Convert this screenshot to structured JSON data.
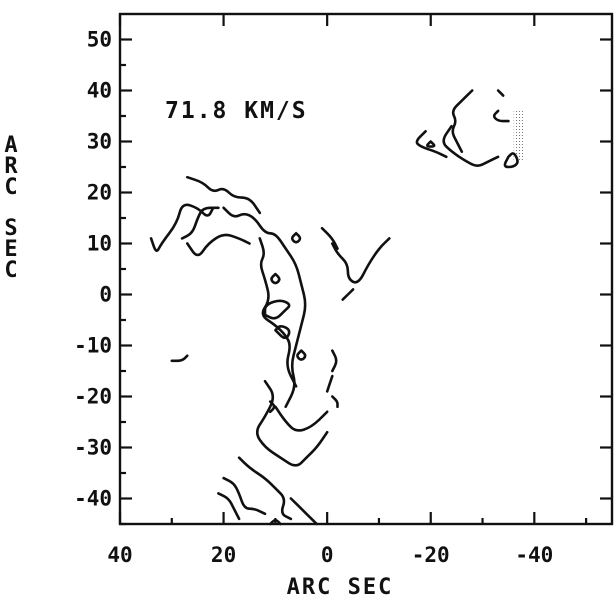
{
  "chart_data": {
    "type": "contour",
    "title": "",
    "annotation": "71.8 KM/S",
    "xlabel": "ARC SEC",
    "ylabel": "ARC SEC",
    "xlim": [
      40,
      -55
    ],
    "ylim": [
      -45,
      55
    ],
    "xticks": [
      40,
      20,
      0,
      -20,
      -40
    ],
    "xtick_labels": [
      "40",
      "20",
      "0",
      "-20",
      "-40"
    ],
    "yticks": [
      50,
      40,
      30,
      20,
      10,
      0,
      -10,
      -20,
      -30,
      -40
    ],
    "ytick_labels": [
      "50",
      "40",
      "30",
      "20",
      "10",
      "0",
      "-10",
      "-20",
      "-30",
      "-40"
    ],
    "grid": false,
    "contours": [
      {
        "points": [
          [
            27,
            23
          ],
          [
            24,
            22
          ],
          [
            22,
            20
          ],
          [
            20,
            21
          ],
          [
            18,
            19
          ],
          [
            15,
            19
          ],
          [
            13,
            16
          ]
        ]
      },
      {
        "points": [
          [
            20,
            17
          ],
          [
            18,
            15
          ],
          [
            16,
            16
          ],
          [
            14,
            15
          ],
          [
            12,
            12
          ],
          [
            10,
            12
          ],
          [
            8,
            9
          ],
          [
            6,
            6
          ],
          [
            5,
            2
          ],
          [
            4,
            -2
          ],
          [
            5,
            -6
          ],
          [
            6,
            -10
          ],
          [
            7,
            -14
          ],
          [
            6,
            -18
          ],
          [
            8,
            -22
          ]
        ]
      },
      {
        "points": [
          [
            34,
            11
          ],
          [
            33,
            8
          ],
          [
            32,
            10
          ],
          [
            29,
            14
          ],
          [
            28,
            18
          ],
          [
            25,
            17
          ],
          [
            23,
            15
          ],
          [
            22,
            17
          ]
        ]
      },
      {
        "points": [
          [
            27,
            10
          ],
          [
            25,
            7
          ],
          [
            23,
            10
          ],
          [
            20,
            12
          ],
          [
            17,
            11
          ],
          [
            15,
            10
          ]
        ]
      },
      {
        "points": [
          [
            28,
            11
          ],
          [
            26,
            12
          ],
          [
            25,
            15
          ],
          [
            24,
            17
          ],
          [
            21,
            17
          ]
        ]
      },
      {
        "points": [
          [
            13,
            11
          ],
          [
            12,
            8
          ],
          [
            13,
            6
          ],
          [
            12,
            3
          ],
          [
            11,
            -1
          ],
          [
            13,
            -4
          ],
          [
            10,
            -6
          ],
          [
            8,
            -8
          ],
          [
            7,
            -10
          ],
          [
            8,
            -14
          ],
          [
            6,
            -18
          ]
        ]
      },
      {
        "points": [
          [
            12,
            -4
          ],
          [
            10,
            -5
          ],
          [
            8,
            -3
          ],
          [
            7,
            -2
          ],
          [
            9,
            -1
          ],
          [
            12,
            -2
          ],
          [
            12,
            -4
          ]
        ]
      },
      {
        "points": [
          [
            10,
            -7
          ],
          [
            8,
            -9
          ],
          [
            7,
            -7
          ],
          [
            9,
            -6
          ],
          [
            10,
            -7
          ]
        ]
      },
      {
        "points": [
          [
            10,
            4
          ],
          [
            9,
            3
          ],
          [
            10,
            2
          ],
          [
            11,
            3
          ],
          [
            10,
            4
          ]
        ]
      },
      {
        "points": [
          [
            6,
            12
          ],
          [
            5,
            11
          ],
          [
            6,
            10
          ],
          [
            7,
            11
          ],
          [
            6,
            12
          ]
        ]
      },
      {
        "points": [
          [
            5,
            -11
          ],
          [
            4,
            -12
          ],
          [
            5,
            -13
          ],
          [
            6,
            -12
          ],
          [
            5,
            -11
          ]
        ]
      },
      {
        "points": [
          [
            27,
            -12
          ],
          [
            28,
            -13
          ],
          [
            30,
            -13
          ]
        ]
      },
      {
        "points": [
          [
            1,
            13
          ],
          [
            -1,
            11
          ],
          [
            -2,
            9
          ]
        ]
      },
      {
        "points": [
          [
            -1,
            10
          ],
          [
            -2,
            8
          ],
          [
            -4,
            6
          ],
          [
            -4,
            3
          ],
          [
            -6,
            2
          ],
          [
            -8,
            6
          ],
          [
            -10,
            9
          ],
          [
            -12,
            11
          ]
        ]
      },
      {
        "points": [
          [
            -3,
            -1
          ],
          [
            -4,
            0
          ],
          [
            -5,
            1
          ]
        ]
      },
      {
        "points": [
          [
            -1,
            -11
          ],
          [
            -2,
            -13
          ],
          [
            -1,
            -15
          ]
        ]
      },
      {
        "points": [
          [
            -1,
            -20
          ],
          [
            -2,
            -21
          ],
          [
            -2,
            -22
          ]
        ]
      },
      {
        "points": [
          [
            0,
            -19
          ],
          [
            -1,
            -16
          ]
        ]
      },
      {
        "points": [
          [
            12,
            -17
          ],
          [
            10,
            -20
          ],
          [
            12,
            -24
          ],
          [
            14,
            -27
          ],
          [
            12,
            -30
          ],
          [
            9,
            -32
          ],
          [
            6,
            -34
          ],
          [
            4,
            -32
          ],
          [
            2,
            -30
          ],
          [
            0,
            -27
          ]
        ]
      },
      {
        "points": [
          [
            10,
            -22
          ],
          [
            8,
            -25
          ],
          [
            6,
            -27
          ],
          [
            3,
            -26
          ],
          [
            0,
            -23
          ]
        ]
      },
      {
        "points": [
          [
            11,
            -21
          ],
          [
            10,
            -22
          ],
          [
            11,
            -23
          ]
        ]
      },
      {
        "points": [
          [
            17,
            -32
          ],
          [
            15,
            -34
          ],
          [
            12,
            -36
          ],
          [
            10,
            -38
          ],
          [
            8,
            -40
          ],
          [
            9,
            -43
          ],
          [
            7,
            -44
          ]
        ]
      },
      {
        "points": [
          [
            20,
            -36
          ],
          [
            18,
            -37
          ],
          [
            17,
            -39
          ],
          [
            16,
            -42
          ],
          [
            14,
            -42
          ],
          [
            12,
            -43
          ]
        ]
      },
      {
        "points": [
          [
            21,
            -39
          ],
          [
            19,
            -40
          ],
          [
            18,
            -42
          ],
          [
            17,
            -44
          ]
        ]
      },
      {
        "points": [
          [
            7,
            -40
          ],
          [
            5,
            -42
          ],
          [
            3,
            -44
          ],
          [
            2,
            -45
          ]
        ]
      },
      {
        "points": [
          [
            9,
            -45
          ],
          [
            10,
            -44
          ],
          [
            11,
            -45
          ]
        ]
      },
      {
        "points": [
          [
            -24,
            33
          ],
          [
            -22,
            30
          ],
          [
            -24,
            28
          ],
          [
            -27,
            26
          ],
          [
            -29,
            25
          ],
          [
            -31,
            26
          ],
          [
            -33,
            27
          ]
        ]
      },
      {
        "points": [
          [
            -28,
            40
          ],
          [
            -26,
            38
          ],
          [
            -24,
            36
          ],
          [
            -25,
            34
          ],
          [
            -24,
            32
          ],
          [
            -25,
            30
          ],
          [
            -26,
            28
          ]
        ]
      },
      {
        "points": [
          [
            -19,
            32
          ],
          [
            -17,
            30
          ],
          [
            -18,
            29
          ],
          [
            -21,
            28
          ],
          [
            -23,
            27
          ]
        ]
      },
      {
        "points": [
          [
            -20,
            30
          ],
          [
            -19,
            29
          ],
          [
            -21,
            29
          ],
          [
            -20,
            30
          ]
        ]
      },
      {
        "points": [
          [
            -33,
            36
          ],
          [
            -32,
            35
          ],
          [
            -33,
            34
          ],
          [
            -35,
            34
          ]
        ]
      },
      {
        "points": [
          [
            -35,
            27
          ],
          [
            -34,
            25
          ],
          [
            -36,
            25
          ],
          [
            -37,
            26
          ],
          [
            -36,
            28
          ],
          [
            -35,
            27
          ]
        ]
      },
      {
        "points": [
          [
            -33,
            40
          ],
          [
            -34,
            39
          ]
        ]
      }
    ],
    "shaded_region": {
      "x": [
        -36,
        -38
      ],
      "y": [
        36,
        26
      ]
    }
  }
}
